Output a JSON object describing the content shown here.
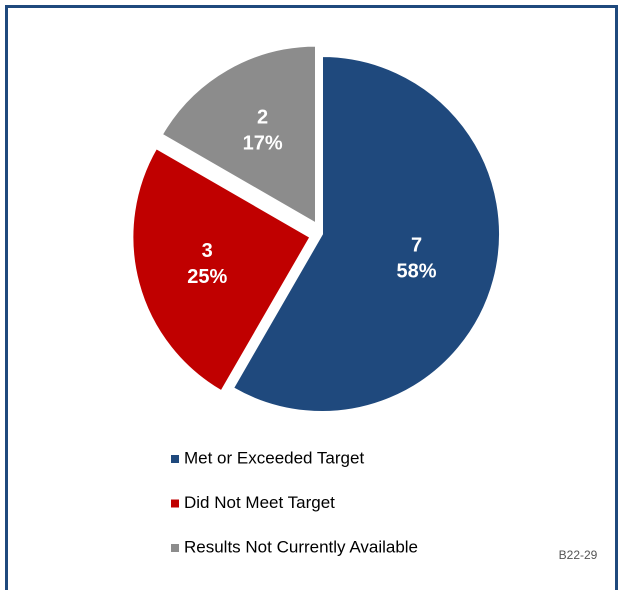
{
  "chart_data": {
    "type": "pie",
    "categories": [
      "Met or Exceeded Target",
      "Did Not Meet Target",
      "Results Not Currently Available"
    ],
    "values": [
      7,
      3,
      2
    ],
    "percent_labels": [
      "58%",
      "25%",
      "17%"
    ],
    "colors": [
      "#1f497d",
      "#c00000",
      "#8c8c8c"
    ],
    "legend": "bottom",
    "footnote": "B22-29"
  }
}
